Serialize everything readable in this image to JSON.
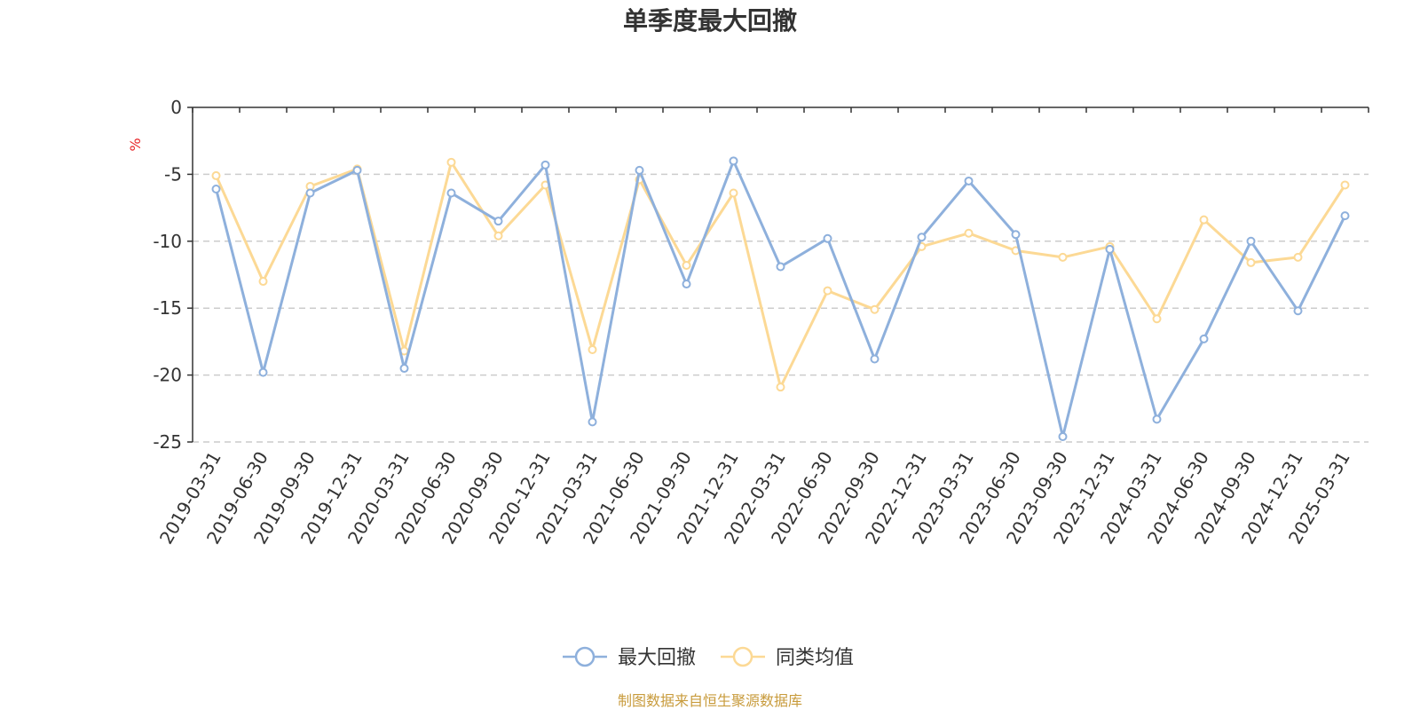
{
  "chart_data": {
    "type": "line",
    "title": "单季度最大回撤",
    "ylabel": "%",
    "ylim": [
      -25,
      0
    ],
    "yticks": [
      0,
      -5,
      -10,
      -15,
      -20,
      -25
    ],
    "grid": true,
    "legend_position": "bottom",
    "categories": [
      "2019-03-31",
      "2019-06-30",
      "2019-09-30",
      "2019-12-31",
      "2020-03-31",
      "2020-06-30",
      "2020-09-30",
      "2020-12-31",
      "2021-03-31",
      "2021-06-30",
      "2021-09-30",
      "2021-12-31",
      "2022-03-31",
      "2022-06-30",
      "2022-09-30",
      "2022-12-31",
      "2023-03-31",
      "2023-06-30",
      "2023-09-30",
      "2023-12-31",
      "2024-03-31",
      "2024-06-30",
      "2024-09-30",
      "2024-12-31",
      "2025-03-31"
    ],
    "series": [
      {
        "name": "最大回撤",
        "color": "#8eb0dc",
        "values": [
          -6.1,
          -19.8,
          -6.4,
          -4.7,
          -19.5,
          -6.4,
          -8.5,
          -4.3,
          -23.5,
          -4.7,
          -13.2,
          -4.0,
          -11.9,
          -9.8,
          -18.8,
          -9.7,
          -5.5,
          -9.5,
          -24.6,
          -10.6,
          -23.3,
          -17.3,
          -10.0,
          -15.2,
          -8.1
        ]
      },
      {
        "name": "同类均值",
        "color": "#fcd995",
        "values": [
          -5.1,
          -13.0,
          -5.9,
          -4.6,
          -18.2,
          -4.1,
          -9.6,
          -5.8,
          -18.1,
          -5.4,
          -11.8,
          -6.4,
          -20.9,
          -13.7,
          -15.1,
          -10.4,
          -9.4,
          -10.7,
          -11.2,
          -10.4,
          -15.8,
          -8.4,
          -11.6,
          -11.2,
          -5.8
        ]
      }
    ]
  },
  "source_note": "制图数据来自恒生聚源数据库",
  "colors": {
    "axis": "#333333",
    "grid": "#cccccc",
    "unit": "#e8262a",
    "source": "#c89b3c"
  }
}
